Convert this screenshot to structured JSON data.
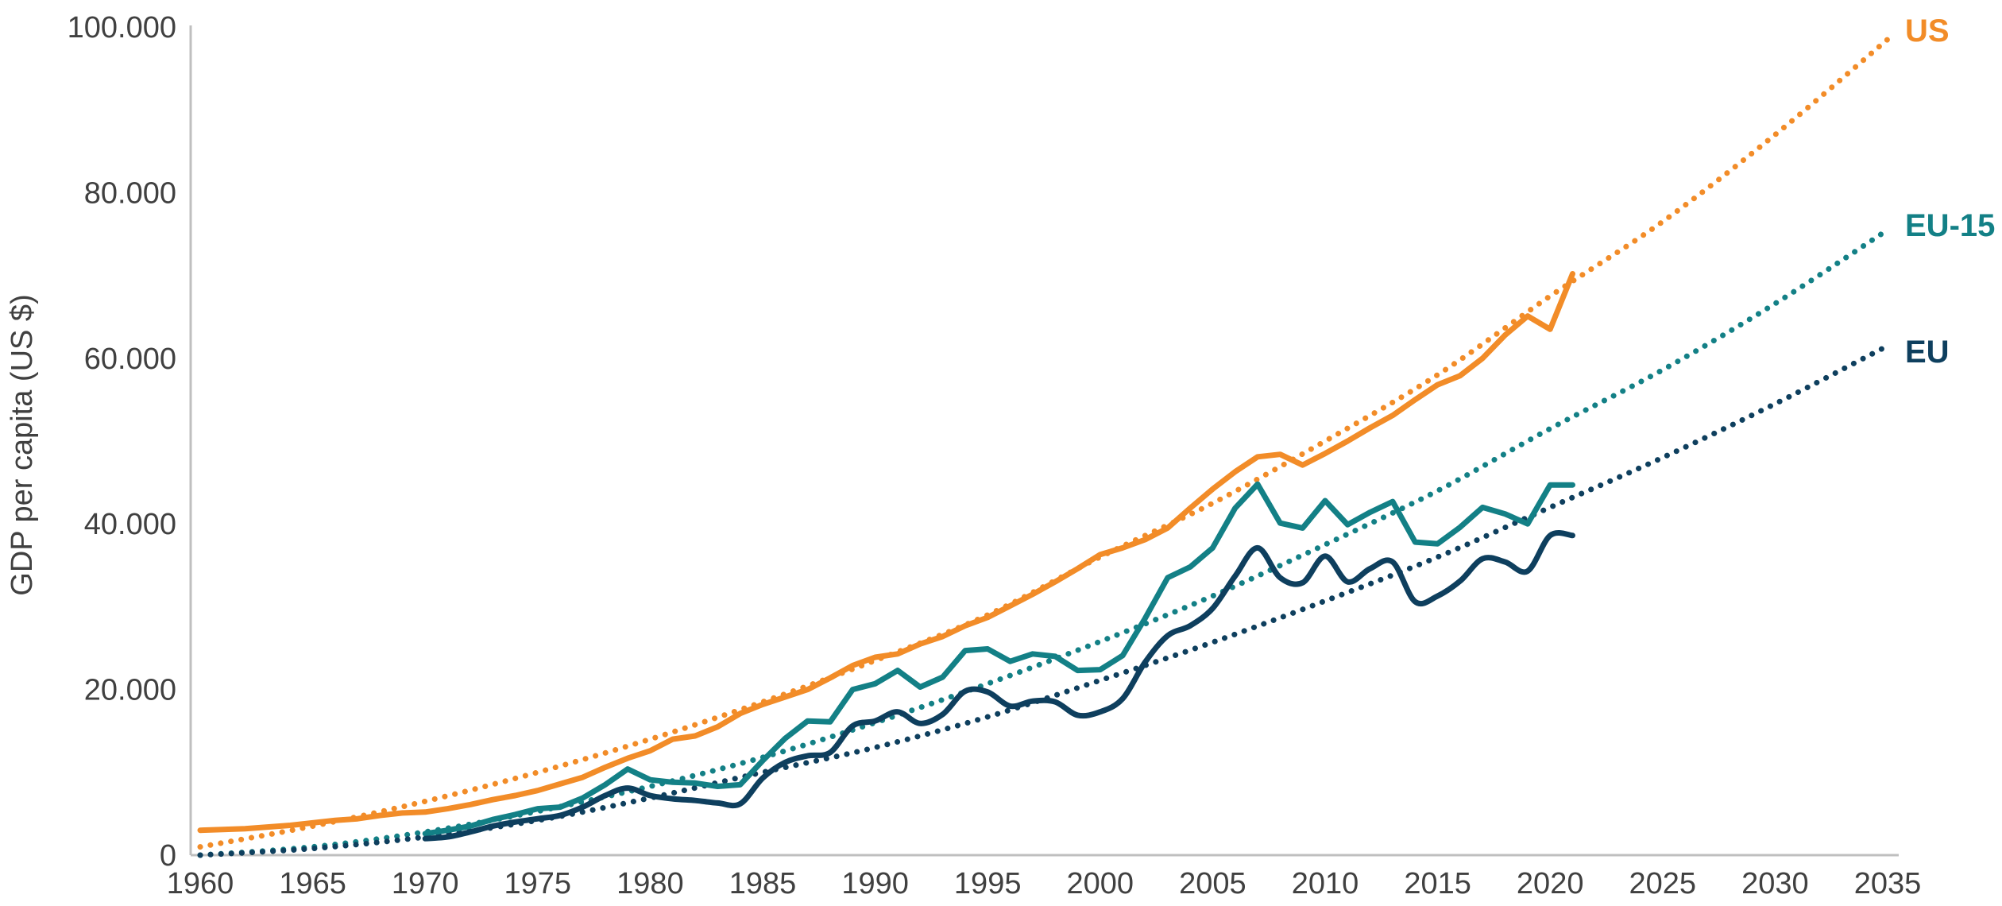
{
  "chart_data": {
    "type": "line",
    "title": "",
    "xlabel": "",
    "ylabel": "GDP per capita (US $)",
    "xlim": [
      1960,
      2035
    ],
    "ylim": [
      0,
      100000
    ],
    "x_ticks": [
      1960,
      1965,
      1970,
      1975,
      1980,
      1985,
      1990,
      1995,
      2000,
      2005,
      2010,
      2015,
      2020,
      2025,
      2030,
      2035
    ],
    "y_ticks": [
      0,
      20000,
      40000,
      60000,
      80000,
      100000
    ],
    "x_tick_labels": [
      "1960",
      "1965",
      "1970",
      "1975",
      "1980",
      "1985",
      "1990",
      "1995",
      "2000",
      "2005",
      "2010",
      "2015",
      "2020",
      "2025",
      "2030",
      "2035"
    ],
    "y_tick_labels": [
      "0",
      "20.000",
      "40.000",
      "60.000",
      "80.000",
      "100.000"
    ],
    "grid": false,
    "series": [
      {
        "name": "US",
        "color": "#f28c28",
        "x": [
          1960,
          1961,
          1962,
          1963,
          1964,
          1965,
          1966,
          1967,
          1968,
          1969,
          1970,
          1971,
          1972,
          1973,
          1974,
          1975,
          1976,
          1977,
          1978,
          1979,
          1980,
          1981,
          1982,
          1983,
          1984,
          1985,
          1986,
          1987,
          1988,
          1989,
          1990,
          1991,
          1992,
          1993,
          1994,
          1995,
          1996,
          1997,
          1998,
          1999,
          2000,
          2001,
          2002,
          2003,
          2004,
          2005,
          2006,
          2007,
          2008,
          2009,
          2010,
          2011,
          2012,
          2013,
          2014,
          2015,
          2016,
          2017,
          2018,
          2019,
          2020,
          2021
        ],
        "values": [
          3000,
          3100,
          3200,
          3400,
          3600,
          3900,
          4200,
          4400,
          4800,
          5100,
          5200,
          5600,
          6100,
          6700,
          7200,
          7800,
          8600,
          9400,
          10600,
          11700,
          12600,
          14000,
          14400,
          15500,
          17100,
          18200,
          19100,
          20000,
          21400,
          22900,
          23900,
          24300,
          25500,
          26400,
          27700,
          28700,
          30100,
          31500,
          33000,
          34600,
          36300,
          37100,
          38100,
          39500,
          41900,
          44200,
          46300,
          48100,
          48400,
          47100,
          48500,
          50000,
          51600,
          53100,
          55000,
          56800,
          57900,
          60000,
          62800,
          65100,
          63500,
          70200
        ]
      },
      {
        "name": "EU-15",
        "color": "#138086",
        "x": [
          1970,
          1971,
          1972,
          1973,
          1974,
          1975,
          1976,
          1977,
          1978,
          1979,
          1980,
          1981,
          1982,
          1983,
          1984,
          1985,
          1986,
          1987,
          1988,
          1989,
          1990,
          1991,
          1992,
          1993,
          1994,
          1995,
          1996,
          1997,
          1998,
          1999,
          2000,
          2001,
          2002,
          2003,
          2004,
          2005,
          2006,
          2007,
          2008,
          2009,
          2010,
          2011,
          2012,
          2013,
          2014,
          2015,
          2016,
          2017,
          2018,
          2019,
          2020,
          2021
        ],
        "values": [
          2600,
          3000,
          3500,
          4300,
          4900,
          5600,
          5800,
          6900,
          8500,
          10400,
          9100,
          8800,
          8700,
          8300,
          8500,
          11400,
          14100,
          16200,
          16100,
          20000,
          20700,
          22300,
          20300,
          21500,
          24700,
          24900,
          23400,
          24300,
          24000,
          22300,
          22400,
          24100,
          28600,
          33500,
          34800,
          37100,
          41900,
          44800,
          40100,
          39500,
          42800,
          39900,
          41400,
          42700,
          37800,
          37600,
          39600,
          42000,
          41200,
          40000,
          44700,
          44700
        ]
      },
      {
        "name": "EU",
        "color": "#0e3f5e",
        "x": [
          1970,
          1971,
          1972,
          1973,
          1974,
          1975,
          1976,
          1977,
          1978,
          1979,
          1980,
          1981,
          1982,
          1983,
          1984,
          1985,
          1986,
          1987,
          1988,
          1989,
          1990,
          1991,
          1992,
          1993,
          1994,
          1995,
          1996,
          1997,
          1998,
          1999,
          2000,
          2001,
          2002,
          2003,
          2004,
          2005,
          2006,
          2007,
          2008,
          2009,
          2010,
          2011,
          2012,
          2013,
          2014,
          2015,
          2016,
          2017,
          2018,
          2019,
          2020,
          2021
        ],
        "values": [
          2000,
          2200,
          2800,
          3500,
          4000,
          4400,
          4800,
          5800,
          7200,
          8100,
          7200,
          6800,
          6600,
          6300,
          6200,
          9300,
          11200,
          12000,
          12400,
          15600,
          16200,
          17300,
          15900,
          17000,
          19800,
          19700,
          18000,
          18600,
          18500,
          16900,
          17300,
          18900,
          23300,
          26500,
          27700,
          29800,
          33700,
          37100,
          33500,
          32900,
          36100,
          33000,
          34600,
          35400,
          30600,
          31300,
          33100,
          35800,
          35400,
          34300,
          38600,
          38600
        ]
      }
    ],
    "trendlines": [
      {
        "name": "US",
        "color": "#f28c28",
        "style": "dotted",
        "x": [
          1960,
          1965,
          1970,
          1975,
          1980,
          1985,
          1990,
          1995,
          2000,
          2005,
          2010,
          2015,
          2020,
          2025,
          2030,
          2035
        ],
        "values": [
          1000,
          3500,
          6500,
          10000,
          14000,
          18500,
          23500,
          29000,
          36000,
          42500,
          50000,
          58000,
          67500,
          76500,
          87000,
          98500
        ]
      },
      {
        "name": "EU-15",
        "color": "#138086",
        "style": "dotted",
        "x": [
          1960,
          1965,
          1970,
          1975,
          1980,
          1985,
          1990,
          1995,
          2000,
          2005,
          2010,
          2015,
          2020,
          2025,
          2030,
          2035
        ],
        "values": [
          0,
          1000,
          2800,
          5300,
          8300,
          11800,
          16000,
          20700,
          25800,
          31300,
          37500,
          44000,
          51500,
          58600,
          66600,
          75500
        ]
      },
      {
        "name": "EU",
        "color": "#0e3f5e",
        "style": "dotted",
        "x": [
          1960,
          1965,
          1970,
          1975,
          1980,
          1985,
          1990,
          1995,
          2000,
          2005,
          2010,
          2015,
          2020,
          2025,
          2030,
          2035
        ],
        "values": [
          0,
          800,
          2200,
          4200,
          6900,
          10000,
          13000,
          16700,
          21100,
          25700,
          30700,
          36000,
          42000,
          48000,
          54500,
          61500
        ]
      }
    ],
    "series_labels": [
      "US",
      "EU-15",
      "EU"
    ]
  }
}
